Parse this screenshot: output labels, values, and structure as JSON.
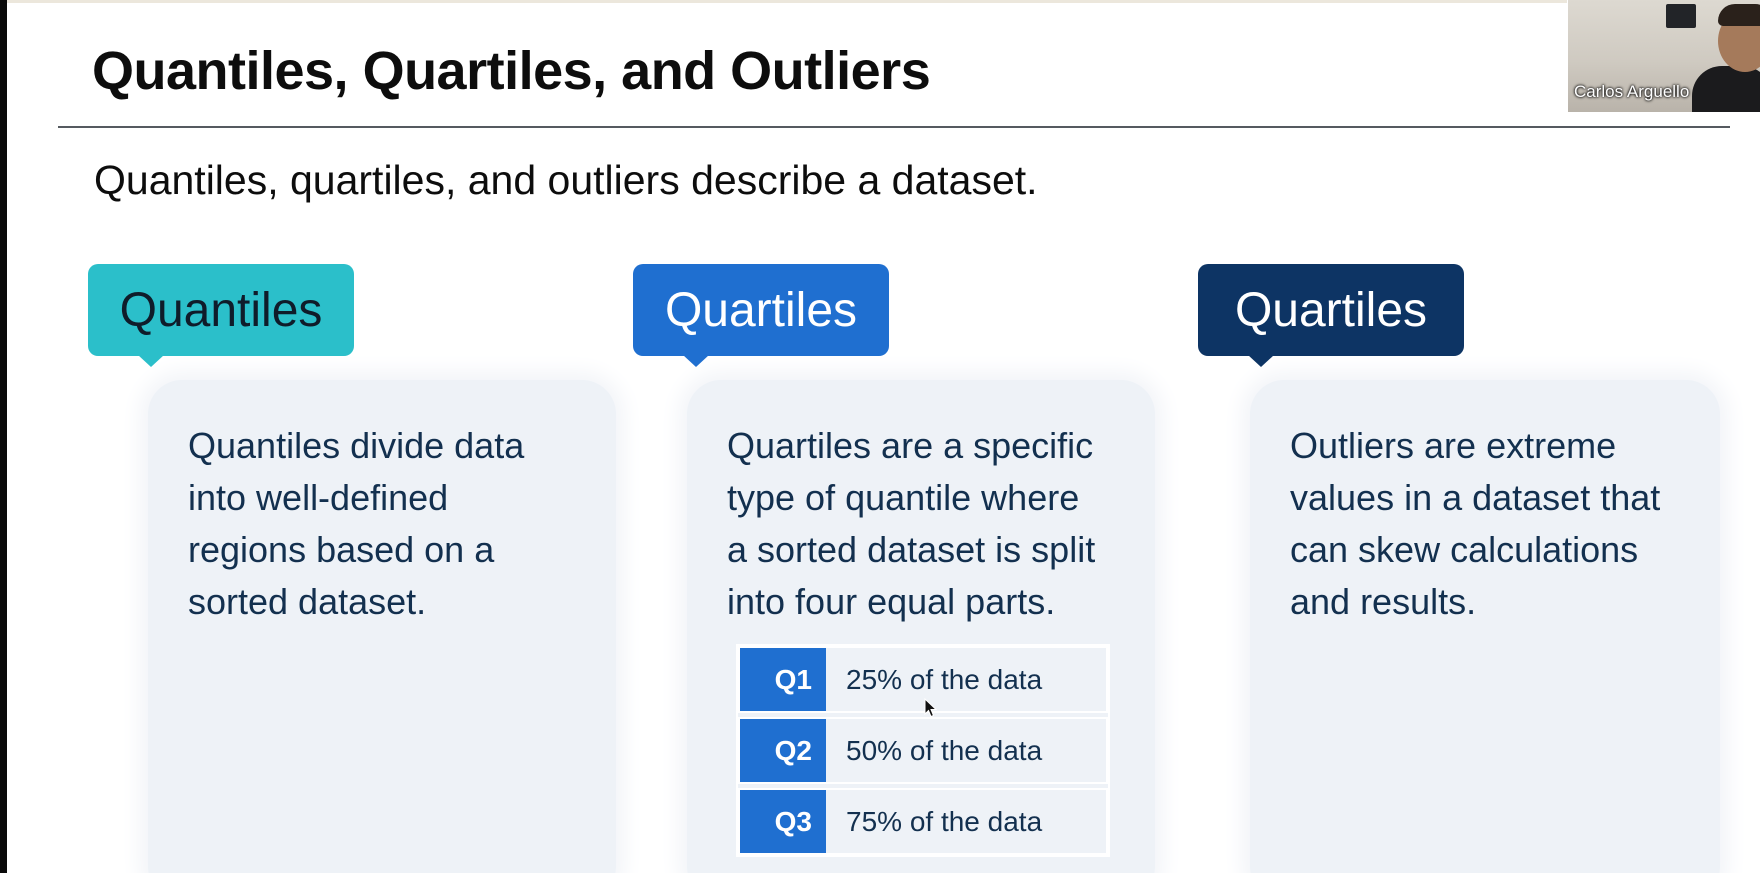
{
  "slide": {
    "title": "Quantiles, Quartiles, and Outliers",
    "subtitle": "Quantiles, quartiles, and outliers describe a dataset."
  },
  "columns": [
    {
      "heading": "Quantiles",
      "body": "Quantiles divide data\ninto well-defined\nregions based on a\nsorted dataset.",
      "color": "#2bbfca"
    },
    {
      "heading": "Quartiles",
      "body": "Quartiles are a specific\ntype of quantile where\na sorted dataset is split\ninto four equal parts.",
      "color": "#1f6fd0"
    },
    {
      "heading": "Quartiles",
      "body": "Outliers are extreme\nvalues in a dataset that\ncan skew calculations\nand results.",
      "color": "#0d3464"
    }
  ],
  "quartile_table": [
    {
      "label": "Q1",
      "desc": "25% of the data"
    },
    {
      "label": "Q2",
      "desc": "50% of the data"
    },
    {
      "label": "Q3",
      "desc": "75% of the data"
    }
  ],
  "video": {
    "participant_name": "Carlos Arguello"
  },
  "colors": {
    "text_dark": "#0d0d0d",
    "card_text": "#13304f",
    "card_bg": "#eef2f7"
  },
  "icons": [
    "mouse-pointer-icon"
  ]
}
